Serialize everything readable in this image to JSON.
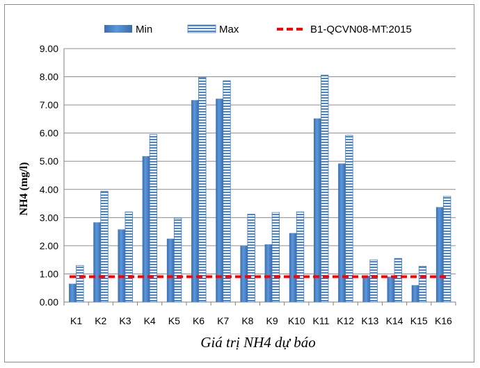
{
  "chart_data": {
    "type": "bar",
    "title": "",
    "xlabel": "Giá trị NH4 dự báo",
    "ylabel": "NH4  (mg/l)",
    "ylim": [
      0,
      9
    ],
    "ytick_step": 1,
    "ytick_labels": [
      "0.00",
      "1.00",
      "2.00",
      "3.00",
      "4.00",
      "5.00",
      "6.00",
      "7.00",
      "8.00",
      "9.00"
    ],
    "categories": [
      "K1",
      "K2",
      "K3",
      "K4",
      "K5",
      "K6",
      "K7",
      "K8",
      "K9",
      "K10",
      "K11",
      "K12",
      "K13",
      "K14",
      "K15",
      "K16"
    ],
    "series": [
      {
        "name": "Min",
        "kind": "bar",
        "color": "#4a86c8",
        "values": [
          0.65,
          2.83,
          2.58,
          5.18,
          2.25,
          7.17,
          7.22,
          2.0,
          2.05,
          2.45,
          6.52,
          4.92,
          0.93,
          0.9,
          0.6,
          3.37
        ]
      },
      {
        "name": "Max",
        "kind": "bar-striped",
        "color": "#4a86c8",
        "values": [
          1.3,
          3.93,
          3.2,
          5.95,
          2.98,
          7.98,
          7.86,
          3.12,
          3.18,
          3.2,
          8.06,
          5.92,
          1.5,
          1.55,
          1.27,
          3.75
        ]
      },
      {
        "name": "B1-QCVN08-MT:2015",
        "kind": "threshold-line",
        "color": "#ff0000",
        "value": 0.9
      }
    ],
    "grid": true,
    "legend": "top"
  }
}
